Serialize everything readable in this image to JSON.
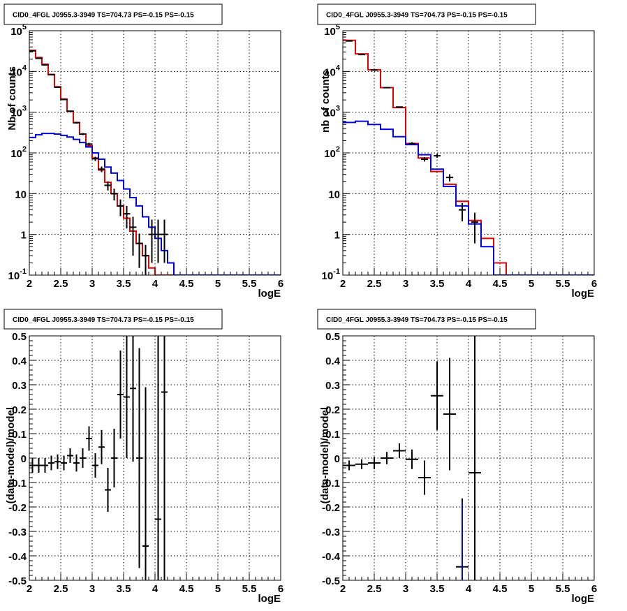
{
  "chart_data": [
    {
      "type": "line",
      "title": "CID0_4FGL J0955.3-3949 TS=704.73 PS=-0.15 PS=-0.15",
      "xlabel": "logE",
      "ylabel": "Nb of counts",
      "xlim": [
        2,
        6
      ],
      "ylim": [
        0.1,
        100000
      ],
      "yscale": "log",
      "grid": true,
      "xticks": [
        "2",
        "2.5",
        "3",
        "3.5",
        "4",
        "4.5",
        "5",
        "5.5",
        "6"
      ],
      "yticks": [
        "10^-1",
        "1",
        "10",
        "10^2",
        "10^3",
        "10^4",
        "10^5"
      ],
      "bin_edges": [
        2.0,
        2.1,
        2.2,
        2.3,
        2.4,
        2.5,
        2.6,
        2.7,
        2.8,
        2.9,
        3.0,
        3.1,
        3.2,
        3.3,
        3.4,
        3.5,
        3.6,
        3.7,
        3.8,
        3.9,
        4.0,
        4.1,
        4.2,
        4.3,
        4.4,
        4.5,
        4.6,
        4.7,
        4.8,
        4.9,
        5.0,
        5.1,
        5.2,
        5.3,
        5.4,
        5.5,
        5.6,
        5.7,
        5.8,
        5.9,
        6.0
      ],
      "series": [
        {
          "color": "#e00000",
          "style": "step",
          "values": [
            33000,
            22000,
            15000,
            8500,
            4200,
            2100,
            1050,
            560,
            290,
            150,
            75,
            38,
            19,
            10,
            5,
            2.5,
            1.2,
            0.6,
            0.3,
            0.15,
            0.1,
            0.1,
            0.1,
            0.1,
            0.1,
            0.1,
            0.1,
            0.1,
            0.1,
            0.1,
            0.1,
            0.1,
            0.1,
            0.1,
            0.1,
            0.1,
            0.1,
            0.1,
            0.1,
            0.1
          ]
        },
        {
          "color": "#0000e0",
          "style": "step",
          "values": [
            240,
            280,
            300,
            300,
            290,
            270,
            245,
            215,
            180,
            140,
            100,
            70,
            45,
            32,
            21,
            13,
            8,
            5,
            2.7,
            1.5,
            0.8,
            0.4,
            0.2,
            0.1,
            0.1,
            0.1,
            0.1,
            0.1,
            0.1,
            0.1,
            0.1,
            0.1,
            0.1,
            0.1,
            0.1,
            0.1,
            0.1,
            0.1,
            0.1,
            0.1
          ]
        },
        {
          "color": "#000000",
          "style": "errorbar",
          "x": [
            2.05,
            2.15,
            2.25,
            2.35,
            2.45,
            2.55,
            2.65,
            2.75,
            2.85,
            2.95,
            3.05,
            3.15,
            3.25,
            3.35,
            3.45,
            3.55,
            3.65,
            3.75,
            3.85,
            3.95,
            4.05,
            4.15
          ],
          "y": [
            32000,
            21000,
            14500,
            8300,
            4100,
            2050,
            1060,
            550,
            290,
            165,
            72,
            40,
            16,
            10,
            5,
            3.2,
            1.5,
            0.6,
            0.3,
            1.0,
            1.0,
            1.0
          ],
          "yerr_low": [
            200,
            150,
            120,
            90,
            65,
            45,
            33,
            23,
            17,
            13,
            8.5,
            6.3,
            4,
            3.2,
            2.2,
            1.8,
            1.2,
            0.45,
            0.25,
            0.8,
            0.8,
            0.8
          ],
          "yerr_high": [
            200,
            150,
            120,
            90,
            65,
            45,
            33,
            23,
            17,
            13,
            8.5,
            6.3,
            4,
            3.2,
            2.2,
            1.8,
            1.2,
            0.45,
            0.25,
            1.3,
            1.3,
            1.3
          ]
        }
      ]
    },
    {
      "type": "line",
      "title": "CID0_4FGL J0955.3-3949 TS=704.73 PS=-0.15 PS=-0.15",
      "xlabel": "logE",
      "ylabel": "nb of counts",
      "xlim": [
        2,
        6
      ],
      "ylim": [
        0.1,
        100000
      ],
      "yscale": "log",
      "grid": true,
      "xticks": [
        "2",
        "2.5",
        "3",
        "3.5",
        "4",
        "4.5",
        "5",
        "5.5",
        "6"
      ],
      "yticks": [
        "10^-1",
        "1",
        "10",
        "10^2",
        "10^3",
        "10^4",
        "10^5"
      ],
      "bin_edges": [
        2.0,
        2.2,
        2.4,
        2.6,
        2.8,
        3.0,
        3.2,
        3.4,
        3.6,
        3.8,
        4.0,
        4.2,
        4.4,
        4.6,
        4.8,
        5.0,
        5.2,
        5.4,
        5.6,
        5.8,
        6.0
      ],
      "series": [
        {
          "color": "#e00000",
          "style": "step",
          "values": [
            58000,
            27000,
            11000,
            4000,
            1300,
            170,
            75,
            35,
            17,
            6.5,
            2.2,
            0.8,
            0.2,
            0.1,
            0.1,
            0.1,
            0.1,
            0.1,
            0.1,
            0.1
          ]
        },
        {
          "color": "#0000e0",
          "style": "step",
          "values": [
            560,
            600,
            500,
            380,
            250,
            160,
            90,
            40,
            15,
            5,
            1.8,
            0.5,
            0.1,
            0.1,
            0.1,
            0.1,
            0.1,
            0.1,
            0.1,
            0.1
          ]
        },
        {
          "color": "#000000",
          "style": "errorbar",
          "x": [
            2.1,
            2.3,
            2.5,
            2.7,
            2.9,
            3.1,
            3.3,
            3.5,
            3.7,
            3.9,
            4.1
          ],
          "y": [
            56000,
            26000,
            10800,
            4000,
            1340,
            170,
            70,
            85,
            25,
            4.0,
            2.0
          ],
          "yerr_low": [
            240,
            160,
            105,
            63,
            37,
            13,
            8.4,
            9,
            5,
            1.9,
            1.4
          ],
          "yerr_high": [
            240,
            160,
            105,
            63,
            37,
            13,
            8.4,
            9,
            5,
            1.9,
            1.4
          ]
        }
      ]
    },
    {
      "type": "scatter",
      "title": "CID0_4FGL J0955.3-3949 TS=704.73 PS=-0.15 PS=-0.15",
      "xlabel": "logE",
      "ylabel": "(data-model)/model",
      "xlim": [
        2,
        6
      ],
      "ylim": [
        -0.5,
        0.5
      ],
      "grid": true,
      "xticks": [
        "2",
        "2.5",
        "3",
        "3.5",
        "4",
        "4.5",
        "5",
        "5.5",
        "6"
      ],
      "yticks": [
        "-0.5",
        "-0.4",
        "-0.3",
        "-0.2",
        "-0.1",
        "0",
        "0.1",
        "0.2",
        "0.3",
        "0.4",
        "0.5"
      ],
      "series": [
        {
          "color": "#000000",
          "style": "errorbar",
          "xerr": 0.05,
          "x": [
            2.05,
            2.15,
            2.25,
            2.35,
            2.45,
            2.55,
            2.65,
            2.75,
            2.85,
            2.95,
            3.05,
            3.15,
            3.25,
            3.35,
            3.45,
            3.55,
            3.65,
            3.75,
            3.85,
            4.05,
            4.15
          ],
          "y": [
            -0.03,
            -0.03,
            -0.03,
            -0.02,
            -0.015,
            -0.02,
            0.01,
            -0.02,
            0.0,
            0.08,
            -0.03,
            0.045,
            -0.13,
            0.0,
            0.26,
            0.25,
            0.285,
            0.0,
            -0.36,
            -0.25,
            0.27
          ],
          "yerr": [
            0.03,
            0.03,
            0.03,
            0.03,
            0.03,
            0.03,
            0.03,
            0.035,
            0.04,
            0.05,
            0.05,
            0.07,
            0.09,
            0.12,
            0.18,
            0.25,
            0.3,
            0.45,
            0.65,
            0.9,
            1.0
          ]
        }
      ]
    },
    {
      "type": "scatter",
      "title": "CID0_4FGL J0955.3-3949 TS=704.73 PS=-0.15 PS=-0.15",
      "xlabel": "logE",
      "ylabel": "(data-model)/model",
      "xlim": [
        2,
        6
      ],
      "ylim": [
        -0.5,
        0.5
      ],
      "grid": true,
      "xticks": [
        "2",
        "2.5",
        "3",
        "3.5",
        "4",
        "4.5",
        "5",
        "5.5",
        "6"
      ],
      "yticks": [
        "-0.5",
        "-0.4",
        "-0.3",
        "-0.2",
        "-0.1",
        "0",
        "0.1",
        "0.2",
        "0.3",
        "0.4",
        "0.5"
      ],
      "series": [
        {
          "color": "#000000",
          "style": "errorbar",
          "xerr": 0.1,
          "x": [
            2.1,
            2.3,
            2.5,
            2.7,
            2.9,
            3.1,
            3.3,
            3.5,
            3.7,
            3.9,
            4.1
          ],
          "y": [
            -0.03,
            -0.025,
            -0.02,
            0.0,
            0.03,
            -0.005,
            -0.08,
            0.255,
            0.18,
            -0.445,
            -0.06
          ],
          "yerr": [
            0.02,
            0.02,
            0.025,
            0.025,
            0.03,
            0.04,
            0.07,
            0.14,
            0.23,
            0.28,
            0.8
          ]
        },
        {
          "color": "#0000e0",
          "style": "line",
          "x": [
            3.9,
            3.9
          ],
          "y": [
            -0.5,
            -0.18
          ]
        }
      ]
    }
  ]
}
